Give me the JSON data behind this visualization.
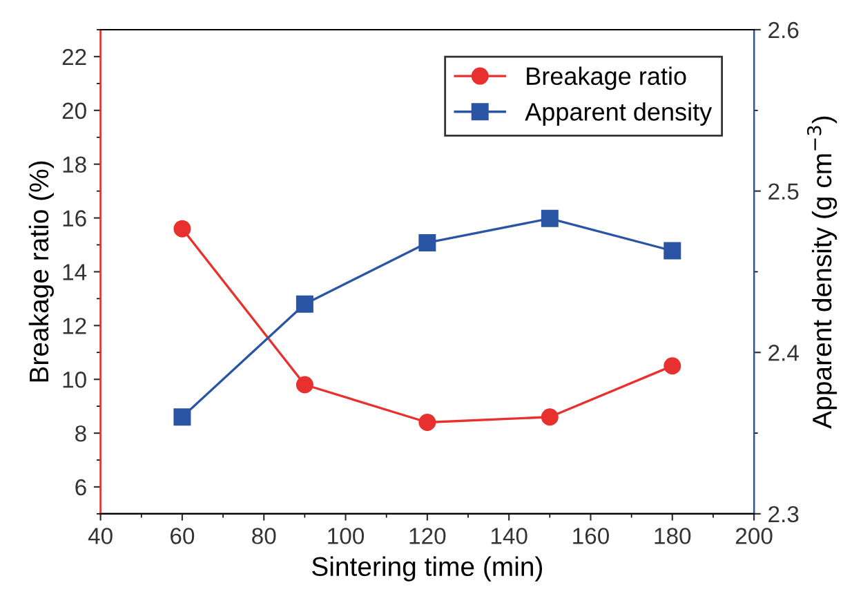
{
  "chart_data": {
    "type": "line",
    "xlabel": "Sintering time (min)",
    "ylabel": "Breakage ratio (%)",
    "y2label": "Apparent density (g cm$^{−3}$)",
    "x": [
      60,
      90,
      120,
      150,
      180
    ],
    "series": [
      {
        "name": "Breakage ratio",
        "color": "#e8312f",
        "values": [
          15.6,
          9.8,
          8.4,
          8.6,
          10.5
        ],
        "marker": "circle"
      },
      {
        "name": "Apparent density",
        "color": "#2a55a5",
        "values": [
          2.36,
          2.43,
          2.468,
          2.483,
          2.463
        ],
        "marker": "square",
        "axis": "y2"
      }
    ],
    "xlim": [
      40,
      200
    ],
    "xticks": [
      40,
      60,
      80,
      100,
      120,
      140,
      160,
      180,
      200
    ],
    "ylim": [
      5,
      23
    ],
    "yticks": [
      6,
      8,
      10,
      12,
      14,
      16,
      18,
      20,
      22
    ],
    "y2lim": [
      2.3,
      2.6
    ],
    "y2ticks": [
      2.3,
      2.4,
      2.5,
      2.6
    ],
    "legend": "top right",
    "grid": false,
    "line_style": "solid"
  }
}
